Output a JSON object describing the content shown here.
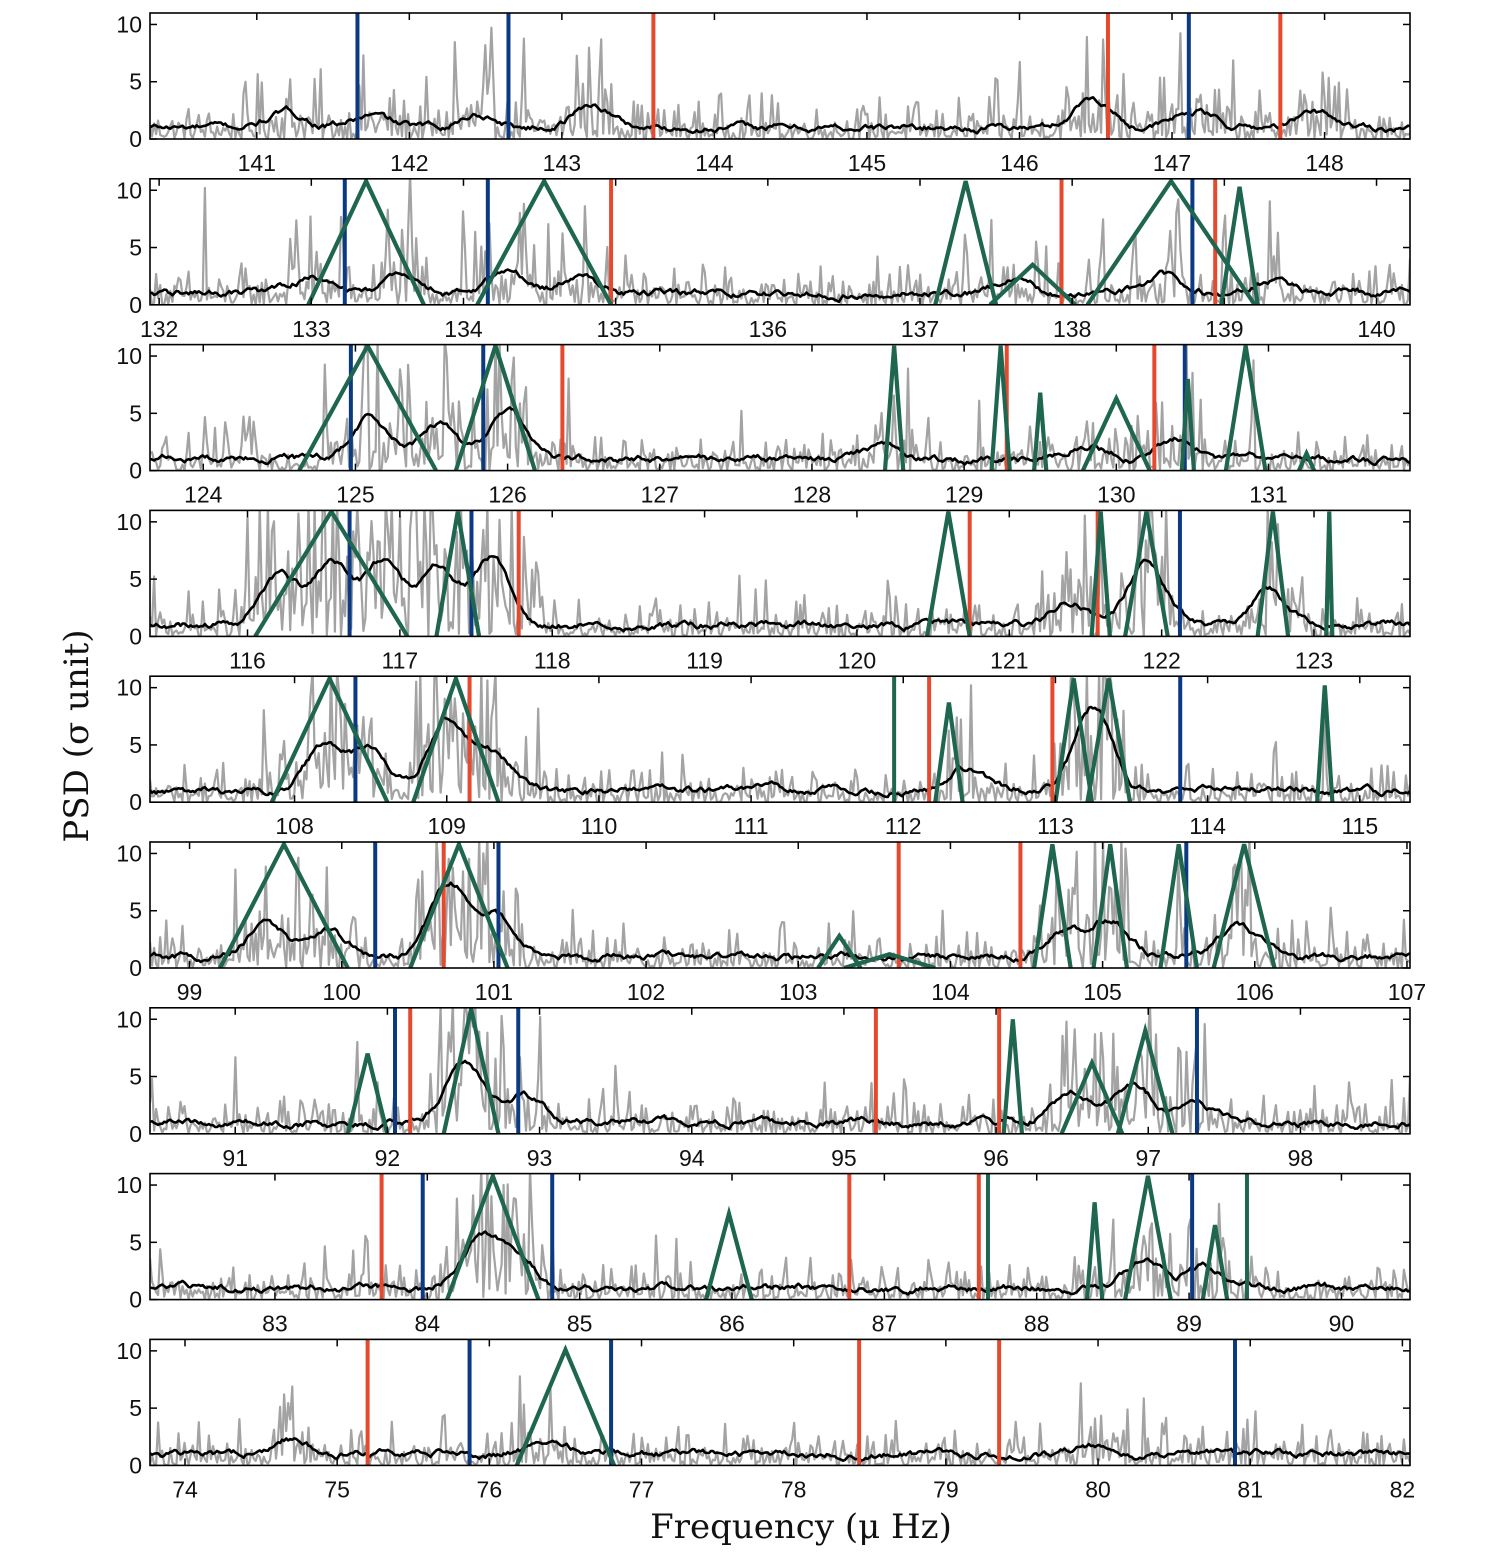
{
  "chart_data": {
    "type": "line",
    "xlabel": "Frequency (μ Hz)",
    "ylabel": "PSD (σ unit)",
    "colors": {
      "psd_raw": "#a3a3a3",
      "psd_smooth": "#000000",
      "marker_red": "#e64a2e",
      "marker_blue": "#0b3a82",
      "fit_green": "#1f6650"
    },
    "panels": [
      {
        "xlim": [
          140.3,
          148.56
        ],
        "ylim": [
          0,
          11
        ],
        "xticks": [
          141,
          142,
          143,
          144,
          145,
          146,
          147,
          148
        ],
        "yticks": [
          0,
          5,
          10
        ],
        "red_lines": [
          143.6,
          146.58,
          147.71
        ],
        "blue_lines": [
          141.66,
          142.65,
          147.11
        ],
        "fits": [],
        "smooth_bumps": [
          [
            141.2,
            1.5
          ],
          [
            141.75,
            1.2
          ],
          [
            142.45,
            1.4
          ],
          [
            143.2,
            2.2
          ],
          [
            146.48,
            2.8
          ],
          [
            147.15,
            1.6
          ],
          [
            147.95,
            1.5
          ]
        ],
        "raw_peaks": [
          [
            142.3,
            9.2
          ],
          [
            142.5,
            9
          ],
          [
            142.75,
            9.4
          ],
          [
            143.1,
            8.2
          ],
          [
            146.0,
            7.5
          ],
          [
            146.55,
            9.5
          ],
          [
            147.4,
            7.2
          ]
        ]
      },
      {
        "xlim": [
          131.94,
          140.22
        ],
        "ylim": [
          0,
          11
        ],
        "xticks": [
          132,
          133,
          134,
          135,
          136,
          137,
          138,
          139,
          140
        ],
        "yticks": [
          0,
          5,
          10
        ],
        "red_lines": [
          134.97,
          137.93,
          138.94
        ],
        "blue_lines": [
          133.22,
          134.16,
          138.79
        ],
        "fits": [
          [
            133.36,
            10.8,
            0.38
          ],
          [
            134.53,
            10.8,
            0.44
          ],
          [
            137.3,
            10.8,
            0.2
          ],
          [
            137.74,
            3.5,
            0.28
          ],
          [
            138.65,
            10.8,
            0.55
          ],
          [
            139.1,
            10.3,
            0.12
          ]
        ],
        "smooth_bumps": [
          [
            133.0,
            1.6
          ],
          [
            133.6,
            1.8
          ],
          [
            134.3,
            2.2
          ],
          [
            134.75,
            1.6
          ],
          [
            137.6,
            1.3
          ],
          [
            138.6,
            1.8
          ],
          [
            139.3,
            1.3
          ]
        ],
        "raw_peaks": [
          [
            132.3,
            10.5
          ],
          [
            132.9,
            8
          ],
          [
            133.2,
            10
          ],
          [
            133.5,
            9.5
          ],
          [
            134.0,
            9.8
          ],
          [
            134.4,
            10.2
          ],
          [
            134.8,
            9.6
          ],
          [
            137.3,
            8
          ],
          [
            138.2,
            9
          ],
          [
            138.7,
            10.5
          ],
          [
            139.0,
            10.2
          ]
        ]
      },
      {
        "xlim": [
          123.65,
          131.93
        ],
        "ylim": [
          0,
          11
        ],
        "xticks": [
          124,
          125,
          126,
          127,
          128,
          129,
          130,
          131
        ],
        "yticks": [
          0,
          5,
          10
        ],
        "red_lines": [
          126.36,
          129.28,
          130.25
        ],
        "blue_lines": [
          124.97,
          125.84,
          130.45
        ],
        "fits": [
          [
            125.08,
            10.9,
            0.45
          ],
          [
            125.92,
            10.9,
            0.26
          ],
          [
            128.54,
            10.9,
            0.06
          ],
          [
            129.24,
            10.9,
            0.06
          ],
          [
            129.5,
            6.8,
            0.04
          ],
          [
            130.0,
            6.3,
            0.22
          ],
          [
            130.47,
            8,
            0.04
          ],
          [
            130.85,
            10.9,
            0.13
          ],
          [
            131.25,
            1.5,
            0.05
          ]
        ],
        "smooth_bumps": [
          [
            125.1,
            3.8
          ],
          [
            125.55,
            3.2
          ],
          [
            126.0,
            4.5
          ],
          [
            128.5,
            1.5
          ],
          [
            129.8,
            1.5
          ],
          [
            130.4,
            2.2
          ]
        ],
        "raw_peaks": [
          [
            124.3,
            6
          ],
          [
            124.8,
            10
          ],
          [
            125.05,
            10.5
          ],
          [
            125.3,
            10.2
          ],
          [
            125.6,
            10
          ],
          [
            125.95,
            10.5
          ],
          [
            126.4,
            8.5
          ],
          [
            129.1,
            6.5
          ],
          [
            130.5,
            9
          ],
          [
            130.9,
            10.5
          ]
        ]
      },
      {
        "xlim": [
          115.36,
          123.63
        ],
        "ylim": [
          0,
          11
        ],
        "xticks": [
          116,
          117,
          118,
          119,
          120,
          121,
          122,
          123
        ],
        "yticks": [
          0,
          5,
          10
        ],
        "red_lines": [
          117.78,
          120.74,
          121.58
        ],
        "blue_lines": [
          116.67,
          117.47,
          122.12
        ],
        "fits": [
          [
            116.55,
            10.9,
            0.5
          ],
          [
            117.38,
            10.9,
            0.14
          ],
          [
            120.6,
            10.9,
            0.14
          ],
          [
            121.6,
            10.9,
            0.06
          ],
          [
            121.9,
            10.9,
            0.14
          ],
          [
            122.73,
            10.9,
            0.1
          ],
          [
            123.1,
            10.9,
            0.02
          ]
        ],
        "smooth_bumps": [
          [
            116.2,
            4.5
          ],
          [
            116.55,
            5.5
          ],
          [
            116.9,
            5.8
          ],
          [
            117.25,
            5.5
          ],
          [
            117.6,
            6.2
          ],
          [
            121.9,
            5.8
          ],
          [
            121.4,
            2.2
          ],
          [
            122.7,
            3
          ]
        ],
        "raw_peaks": [
          [
            116.0,
            10.5
          ],
          [
            116.4,
            10.8
          ],
          [
            116.7,
            10.8
          ],
          [
            117.0,
            10.8
          ],
          [
            117.3,
            10.8
          ],
          [
            117.55,
            10.6
          ],
          [
            117.9,
            9
          ],
          [
            121.6,
            9.5
          ],
          [
            121.9,
            10.5
          ],
          [
            122.7,
            8
          ]
        ]
      },
      {
        "xlim": [
          107.05,
          115.33
        ],
        "ylim": [
          0,
          11
        ],
        "xticks": [
          108,
          109,
          110,
          111,
          112,
          113,
          114,
          115
        ],
        "yticks": [
          0,
          5,
          10
        ],
        "red_lines": [
          109.15,
          112.17,
          112.98
        ],
        "blue_lines": [
          108.4,
          113.82
        ],
        "green_lines": [
          111.94
        ],
        "fits": [
          [
            108.23,
            10.8,
            0.38
          ],
          [
            109.06,
            10.8,
            0.28
          ],
          [
            112.3,
            8.7,
            0.09
          ],
          [
            113.12,
            10.8,
            0.12
          ],
          [
            113.35,
            10.8,
            0.14
          ],
          [
            114.77,
            10.2,
            0.05
          ]
        ],
        "smooth_bumps": [
          [
            108.2,
            4.2
          ],
          [
            108.5,
            3.8
          ],
          [
            109.0,
            6.5
          ],
          [
            109.3,
            3.5
          ],
          [
            113.25,
            7.5
          ],
          [
            112.4,
            2.2
          ]
        ],
        "raw_peaks": [
          [
            107.8,
            9
          ],
          [
            108.1,
            10.5
          ],
          [
            108.5,
            10.2
          ],
          [
            108.8,
            10.8
          ],
          [
            109.05,
            10.8
          ],
          [
            109.3,
            10.8
          ],
          [
            109.6,
            8.5
          ],
          [
            113.1,
            10.8
          ],
          [
            113.35,
            10.8
          ],
          [
            114.77,
            10
          ]
        ]
      },
      {
        "xlim": [
          98.74,
          107.02
        ],
        "ylim": [
          0,
          11
        ],
        "xticks": [
          99,
          100,
          101,
          102,
          103,
          104,
          105,
          106,
          107
        ],
        "yticks": [
          0,
          5,
          10
        ],
        "red_lines": [
          100.67,
          103.66,
          104.46
        ],
        "blue_lines": [
          100.22,
          101.03,
          105.55
        ],
        "fits": [
          [
            99.62,
            10.8,
            0.42
          ],
          [
            100.77,
            10.8,
            0.32
          ],
          [
            103.27,
            2.8,
            0.14
          ],
          [
            103.6,
            1.2,
            0.3
          ],
          [
            104.67,
            10.8,
            0.12
          ],
          [
            105.05,
            10.8,
            0.11
          ],
          [
            105.5,
            10.8,
            0.12
          ],
          [
            105.93,
            10.8,
            0.2
          ]
        ],
        "smooth_bumps": [
          [
            99.5,
            2.8
          ],
          [
            99.9,
            2.5
          ],
          [
            100.7,
            6.5
          ],
          [
            101.0,
            4
          ],
          [
            104.75,
            2.5
          ],
          [
            105.05,
            3.5
          ],
          [
            105.9,
            3
          ]
        ],
        "raw_peaks": [
          [
            99.3,
            9
          ],
          [
            99.8,
            8
          ],
          [
            100.5,
            9
          ],
          [
            100.7,
            10.8
          ],
          [
            100.95,
            10.8
          ],
          [
            101.15,
            10
          ],
          [
            102.9,
            6
          ],
          [
            104.7,
            10
          ],
          [
            105.05,
            10.5
          ],
          [
            105.5,
            10.5
          ],
          [
            105.9,
            10
          ]
        ]
      },
      {
        "xlim": [
          90.44,
          98.72
        ],
        "ylim": [
          0,
          11
        ],
        "xticks": [
          91,
          92,
          93,
          94,
          95,
          96,
          97,
          98
        ],
        "yticks": [
          0,
          5,
          10
        ],
        "red_lines": [
          92.15,
          95.21,
          96.02
        ],
        "blue_lines": [
          92.05,
          92.86,
          97.32
        ],
        "fits": [
          [
            91.87,
            7,
            0.13
          ],
          [
            92.55,
            10.9,
            0.18
          ],
          [
            96.11,
            10,
            0.06
          ],
          [
            96.63,
            6.2,
            0.2
          ],
          [
            96.98,
            9,
            0.18
          ]
        ],
        "smooth_bumps": [
          [
            92.5,
            5.5
          ],
          [
            92.9,
            2.5
          ],
          [
            96.5,
            3
          ],
          [
            96.9,
            3.5
          ],
          [
            97.3,
            2
          ]
        ],
        "raw_peaks": [
          [
            91.0,
            7
          ],
          [
            91.8,
            9
          ],
          [
            92.4,
            10.5
          ],
          [
            92.6,
            10.8
          ],
          [
            93.5,
            6.5
          ],
          [
            95.4,
            6.5
          ],
          [
            96.7,
            8
          ],
          [
            96.95,
            10.5
          ],
          [
            97.3,
            8
          ]
        ]
      },
      {
        "xlim": [
          82.18,
          90.45
        ],
        "ylim": [
          0,
          11
        ],
        "xticks": [
          83,
          84,
          85,
          86,
          87,
          88,
          89,
          90
        ],
        "yticks": [
          0,
          5,
          10
        ],
        "red_lines": [
          83.7,
          86.77,
          87.62
        ],
        "blue_lines": [
          83.97,
          84.82,
          89.02
        ],
        "green_lines": [
          87.68,
          89.38
        ],
        "fits": [
          [
            84.43,
            10.8,
            0.3
          ],
          [
            85.98,
            7.5,
            0.15
          ],
          [
            88.38,
            8.5,
            0.05
          ],
          [
            88.73,
            10.8,
            0.15
          ],
          [
            89.17,
            6.5,
            0.08
          ]
        ],
        "smooth_bumps": [
          [
            84.35,
            4.5
          ],
          [
            84.6,
            2.8
          ],
          [
            88.7,
            2.5
          ],
          [
            89.1,
            2
          ]
        ],
        "raw_peaks": [
          [
            83.6,
            8
          ],
          [
            84.3,
            9.5
          ],
          [
            84.5,
            10.5
          ],
          [
            85.5,
            6
          ],
          [
            88.5,
            8
          ],
          [
            88.75,
            9.5
          ],
          [
            89.2,
            7.5
          ]
        ]
      },
      {
        "xlim": [
          73.77,
          82.05
        ],
        "ylim": [
          0,
          11
        ],
        "xticks": [
          74,
          75,
          76,
          77,
          78,
          79,
          80,
          81,
          82
        ],
        "yticks": [
          0,
          5,
          10
        ],
        "red_lines": [
          75.2,
          78.43,
          79.35
        ],
        "blue_lines": [
          75.87,
          76.8,
          80.9
        ],
        "fits": [
          [
            76.5,
            10.1,
            0.32
          ]
        ],
        "smooth_bumps": [
          [
            74.7,
            1.5
          ],
          [
            76.4,
            1.2
          ],
          [
            80.0,
            1
          ]
        ],
        "raw_peaks": [
          [
            74.7,
            7
          ],
          [
            75.7,
            6.5
          ],
          [
            76.2,
            8
          ],
          [
            76.4,
            7.2
          ],
          [
            78.0,
            4.5
          ],
          [
            80.3,
            6
          ]
        ]
      }
    ]
  }
}
